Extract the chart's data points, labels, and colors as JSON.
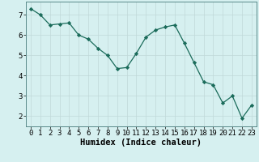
{
  "x": [
    0,
    1,
    2,
    3,
    4,
    5,
    6,
    7,
    8,
    9,
    10,
    11,
    12,
    13,
    14,
    15,
    16,
    17,
    18,
    19,
    20,
    21,
    22,
    23
  ],
  "y": [
    7.3,
    7.0,
    6.5,
    6.55,
    6.6,
    6.0,
    5.8,
    5.35,
    5.0,
    4.35,
    4.4,
    5.1,
    5.9,
    6.25,
    6.4,
    6.5,
    5.6,
    4.65,
    3.7,
    3.55,
    2.65,
    3.0,
    1.9,
    2.55
  ],
  "line_color": "#1a6b5a",
  "marker": "D",
  "marker_size": 2.2,
  "bg_color": "#d6f0f0",
  "grid_color": "#c0d8d8",
  "xlabel": "Humidex (Indice chaleur)",
  "ylim": [
    1.5,
    7.65
  ],
  "xlim": [
    -0.5,
    23.5
  ],
  "yticks": [
    2,
    3,
    4,
    5,
    6,
    7
  ],
  "xticks": [
    0,
    1,
    2,
    3,
    4,
    5,
    6,
    7,
    8,
    9,
    10,
    11,
    12,
    13,
    14,
    15,
    16,
    17,
    18,
    19,
    20,
    21,
    22,
    23
  ],
  "xlabel_fontsize": 7.5,
  "tick_fontsize": 6.5,
  "spine_color": "#5a8a8a",
  "linewidth": 0.9
}
